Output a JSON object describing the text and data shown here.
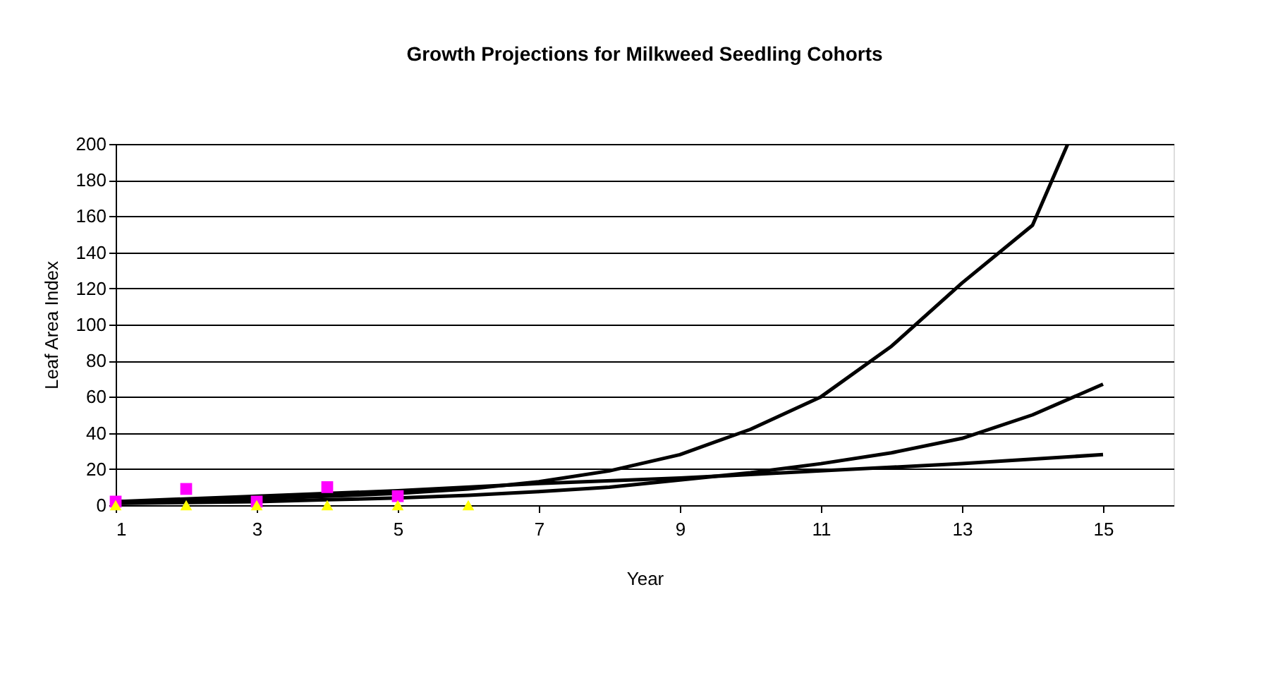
{
  "chart_data": {
    "type": "line",
    "title": "Growth Projections for Milkweed Seedling Cohorts",
    "xlabel": "Year",
    "ylabel": "Leaf Area Index",
    "xlim": [
      1,
      16
    ],
    "xticks": [
      1,
      3,
      5,
      7,
      9,
      11,
      13,
      15
    ],
    "ylim": [
      0,
      200
    ],
    "yticks": [
      0,
      20,
      40,
      60,
      80,
      100,
      120,
      140,
      160,
      180,
      200
    ],
    "grid": "y",
    "line_style": "solid",
    "series": [
      {
        "color": "#000000",
        "x": [
          1,
          2,
          3,
          4,
          5,
          6,
          7,
          8,
          9,
          10,
          11,
          12,
          13,
          14,
          14.5
        ],
        "values": [
          2,
          2.5,
          3.5,
          5,
          6.5,
          9,
          13,
          19,
          28,
          42,
          60,
          88,
          123,
          155,
          200
        ]
      },
      {
        "type": "line",
        "color": "#000000",
        "x": [
          1,
          2,
          3,
          4,
          5,
          6,
          7,
          8,
          9,
          10,
          11,
          12,
          13,
          14,
          15
        ],
        "values": [
          1,
          1.5,
          2,
          3,
          4,
          5.5,
          7.5,
          10,
          14,
          18,
          23,
          29,
          37,
          50,
          67
        ]
      },
      {
        "type": "line",
        "color": "#000000",
        "x": [
          1,
          3,
          5,
          7,
          9,
          11,
          13,
          15
        ],
        "values": [
          2,
          5,
          8,
          12,
          15,
          19,
          23,
          28
        ]
      },
      {
        "type": "scatter",
        "marker": "square",
        "color": "#ff00ff",
        "x": [
          1,
          2,
          3,
          4,
          5
        ],
        "values": [
          2,
          9,
          2,
          10,
          5
        ]
      },
      {
        "type": "scatter",
        "marker": "triangle",
        "color": "#ffff00",
        "x": [
          1,
          2,
          3,
          4,
          5,
          6
        ],
        "values": [
          0,
          0,
          0,
          0,
          0,
          0
        ]
      }
    ]
  }
}
